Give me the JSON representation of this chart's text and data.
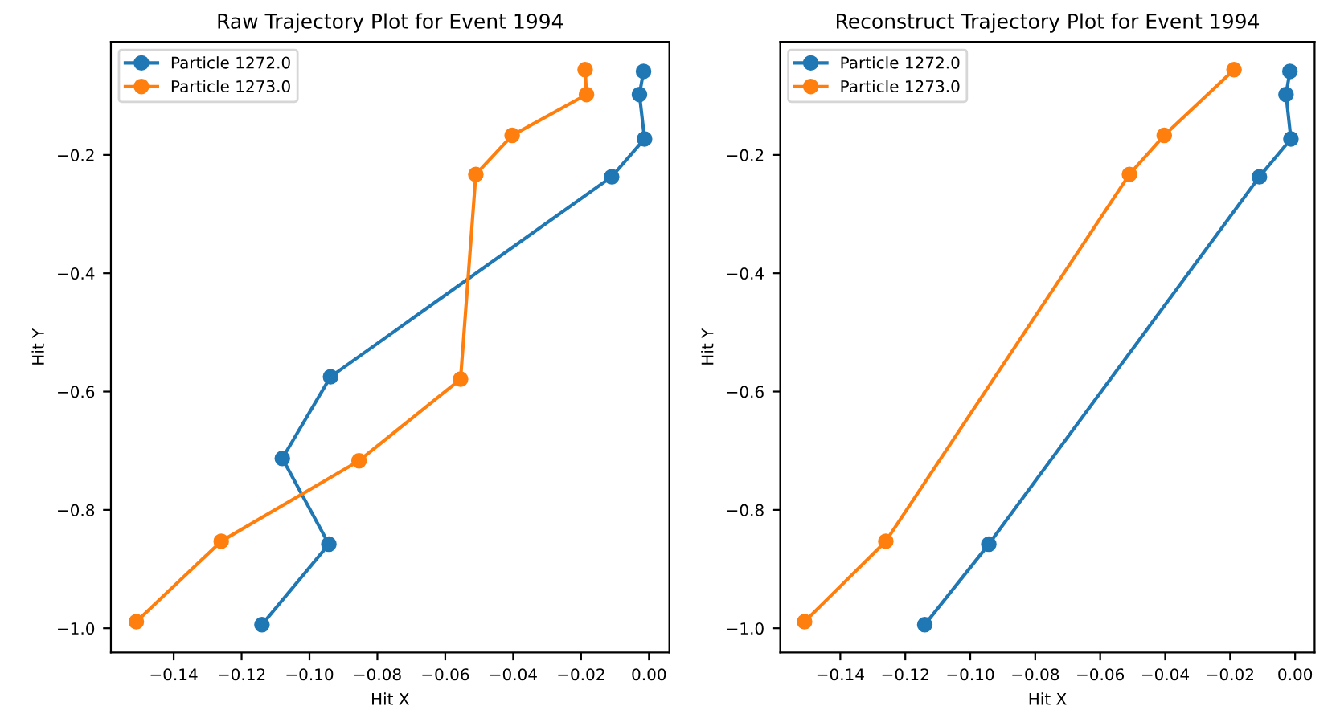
{
  "chart_data": [
    {
      "type": "line",
      "title": "Raw Trajectory Plot for Event 1994",
      "xlabel": "Hit X",
      "ylabel": "Hit Y",
      "marker": "circle",
      "legend": "top left",
      "xlim": [
        -0.1585,
        0.006
      ],
      "ylim": [
        -1.041,
        -0.009
      ],
      "xticks": [
        {
          "value": -0.14,
          "label": "−0.14"
        },
        {
          "value": -0.12,
          "label": "−0.12"
        },
        {
          "value": -0.1,
          "label": "−0.10"
        },
        {
          "value": -0.08,
          "label": "−0.08"
        },
        {
          "value": -0.06,
          "label": "−0.06"
        },
        {
          "value": -0.04,
          "label": "−0.04"
        },
        {
          "value": -0.02,
          "label": "−0.02"
        },
        {
          "value": 0,
          "label": "0.00"
        }
      ],
      "yticks": [
        {
          "value": -0.2,
          "label": "−0.2"
        },
        {
          "value": -0.4,
          "label": "−0.4"
        },
        {
          "value": -0.6,
          "label": "−0.6"
        },
        {
          "value": -0.8,
          "label": "−0.8"
        },
        {
          "value": -1.0,
          "label": "−1.0"
        }
      ],
      "series": [
        {
          "name": "Particle 1272.0",
          "color": "#1f77b4",
          "x": [
            -0.0016,
            -0.0028,
            -0.0013,
            -0.011,
            -0.0938,
            -0.108,
            -0.0943,
            -0.114
          ],
          "values": [
            -0.059,
            -0.098,
            -0.173,
            -0.237,
            -0.575,
            -0.713,
            -0.858,
            -0.994
          ]
        },
        {
          "name": "Particle 1273.0",
          "color": "#ff7f0e",
          "x": [
            -0.0188,
            -0.0184,
            -0.0403,
            -0.051,
            -0.0555,
            -0.0854,
            -0.126,
            -0.151
          ],
          "values": [
            -0.056,
            -0.098,
            -0.167,
            -0.233,
            -0.579,
            -0.717,
            -0.853,
            -0.989
          ]
        }
      ]
    },
    {
      "type": "line",
      "title": "Reconstruct Trajectory Plot for Event 1994",
      "xlabel": "Hit X",
      "ylabel": "Hit Y",
      "marker": "circle",
      "legend": "top left",
      "xlim": [
        -0.1585,
        0.006
      ],
      "ylim": [
        -1.041,
        -0.009
      ],
      "xticks": [
        {
          "value": -0.14,
          "label": "−0.14"
        },
        {
          "value": -0.12,
          "label": "−0.12"
        },
        {
          "value": -0.1,
          "label": "−0.10"
        },
        {
          "value": -0.08,
          "label": "−0.08"
        },
        {
          "value": -0.06,
          "label": "−0.06"
        },
        {
          "value": -0.04,
          "label": "−0.04"
        },
        {
          "value": -0.02,
          "label": "−0.02"
        },
        {
          "value": 0,
          "label": "0.00"
        }
      ],
      "yticks": [
        {
          "value": -0.2,
          "label": "−0.2"
        },
        {
          "value": -0.4,
          "label": "−0.4"
        },
        {
          "value": -0.6,
          "label": "−0.6"
        },
        {
          "value": -0.8,
          "label": "−0.8"
        },
        {
          "value": -1.0,
          "label": "−1.0"
        }
      ],
      "series": [
        {
          "name": "Particle 1272.0",
          "color": "#1f77b4",
          "x": [
            -0.0016,
            -0.0028,
            -0.0013,
            -0.011,
            -0.0943,
            -0.114
          ],
          "values": [
            -0.059,
            -0.098,
            -0.173,
            -0.237,
            -0.858,
            -0.994
          ]
        },
        {
          "name": "Particle 1273.0",
          "color": "#ff7f0e",
          "x": [
            -0.0188,
            -0.0403,
            -0.051,
            -0.126,
            -0.151
          ],
          "values": [
            -0.056,
            -0.167,
            -0.233,
            -0.853,
            -0.989
          ]
        }
      ]
    }
  ]
}
